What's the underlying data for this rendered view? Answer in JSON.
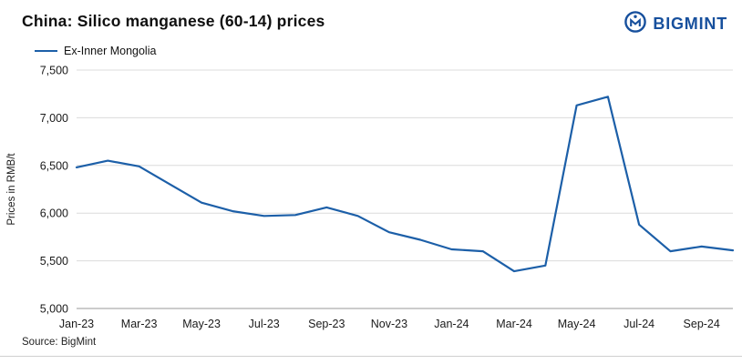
{
  "header": {
    "title": "China: Silico manganese (60-14) prices",
    "logo_text": "BIGMINT"
  },
  "legend": {
    "series_label": "Ex-Inner Mongolia"
  },
  "footer": {
    "source": "Source: BigMint"
  },
  "colors": {
    "line": "#1c5fa8",
    "brand": "#17509d",
    "grid": "#dcdcdc",
    "baseline": "#9a9a9a",
    "text": "#1a1a1a"
  },
  "chart_data": {
    "type": "line",
    "title": "China: Silico manganese (60-14) prices",
    "xlabel": "",
    "ylabel": "Prices in RMB/t",
    "ylim": [
      5000,
      7500
    ],
    "yticks": [
      5000,
      5500,
      6000,
      6500,
      7000,
      7500
    ],
    "ytick_labels": [
      "5,000",
      "5,500",
      "6,000",
      "6,500",
      "7,000",
      "7,500"
    ],
    "x": [
      "Jan-23",
      "Feb-23",
      "Mar-23",
      "Apr-23",
      "May-23",
      "Jun-23",
      "Jul-23",
      "Aug-23",
      "Sep-23",
      "Oct-23",
      "Nov-23",
      "Dec-23",
      "Jan-24",
      "Feb-24",
      "Mar-24",
      "Apr-24",
      "May-24",
      "Jun-24",
      "Jul-24",
      "Aug-24",
      "Sep-24",
      "Oct-24"
    ],
    "xtick_step": 2,
    "xtick_labels_visible": [
      "Jan-23",
      "Mar-23",
      "May-23",
      "Jul-23",
      "Sep-23",
      "Nov-23",
      "Jan-24",
      "Mar-24",
      "May-24",
      "Jul-24",
      "Sep-24"
    ],
    "series": [
      {
        "name": "Ex-Inner Mongolia",
        "values": [
          6480,
          6550,
          6490,
          6300,
          6110,
          6020,
          5970,
          5980,
          6060,
          5970,
          5800,
          5720,
          5620,
          5600,
          5390,
          5450,
          7130,
          7220,
          5880,
          5600,
          5650,
          5610
        ]
      }
    ],
    "grid": "horizontal",
    "legend_position": "top-left"
  }
}
